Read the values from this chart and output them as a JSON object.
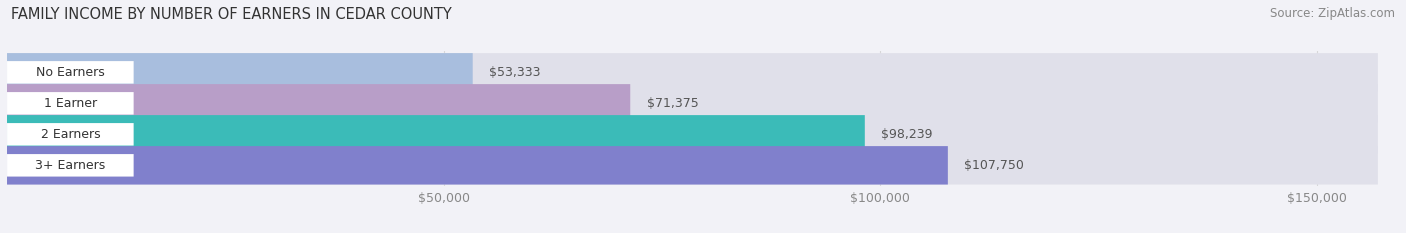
{
  "title": "FAMILY INCOME BY NUMBER OF EARNERS IN CEDAR COUNTY",
  "source": "Source: ZipAtlas.com",
  "categories": [
    "No Earners",
    "1 Earner",
    "2 Earners",
    "3+ Earners"
  ],
  "values": [
    53333,
    71375,
    98239,
    107750
  ],
  "bar_colors": [
    "#a8bede",
    "#b89ec8",
    "#3bbbb8",
    "#8080cc"
  ],
  "background_color": "#f2f2f7",
  "bar_bg_color": "#e0e0ea",
  "xlim": [
    0,
    157000
  ],
  "xticks": [
    50000,
    100000,
    150000
  ],
  "xtick_labels": [
    "$50,000",
    "$100,000",
    "$150,000"
  ],
  "title_fontsize": 10.5,
  "label_fontsize": 9,
  "value_fontsize": 9,
  "source_fontsize": 8.5
}
